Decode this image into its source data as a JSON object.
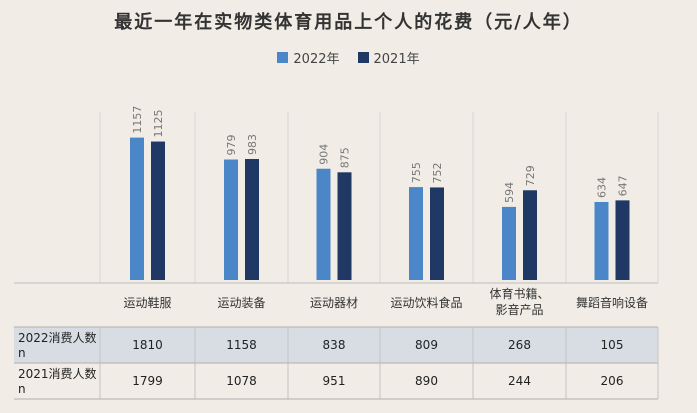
{
  "chart_data": {
    "type": "bar",
    "title": "最近一年在实物类体育用品上个人的花费（元/人年）",
    "categories": [
      "运动鞋服",
      "运动装备",
      "运动器材",
      "运动饮料食品",
      "体育书籍、影音产品",
      "舞蹈音响设备"
    ],
    "category_lines": [
      [
        "运动鞋服"
      ],
      [
        "运动装备"
      ],
      [
        "运动器材"
      ],
      [
        "运动饮料食品"
      ],
      [
        "体育书籍、",
        "影音产品"
      ],
      [
        "舞蹈音响设备"
      ]
    ],
    "series": [
      {
        "name": "2022年",
        "values": [
          1157,
          979,
          904,
          755,
          594,
          634
        ],
        "color": "#4a86c8"
      },
      {
        "name": "2021年",
        "values": [
          1125,
          983,
          875,
          752,
          729,
          647
        ],
        "color": "#1f3864"
      }
    ],
    "ylim": [
      0,
      1300
    ],
    "legend_position": "top",
    "grid": false
  },
  "table": {
    "rows": [
      {
        "label_lines": [
          "2022消费人数",
          "n"
        ],
        "values": [
          "1810",
          "1158",
          "838",
          "809",
          "268",
          "105"
        ],
        "shaded": true
      },
      {
        "label_lines": [
          "2021消费人数",
          "n"
        ],
        "values": [
          "1799",
          "1078",
          "951",
          "890",
          "244",
          "206"
        ],
        "shaded": false
      }
    ]
  }
}
